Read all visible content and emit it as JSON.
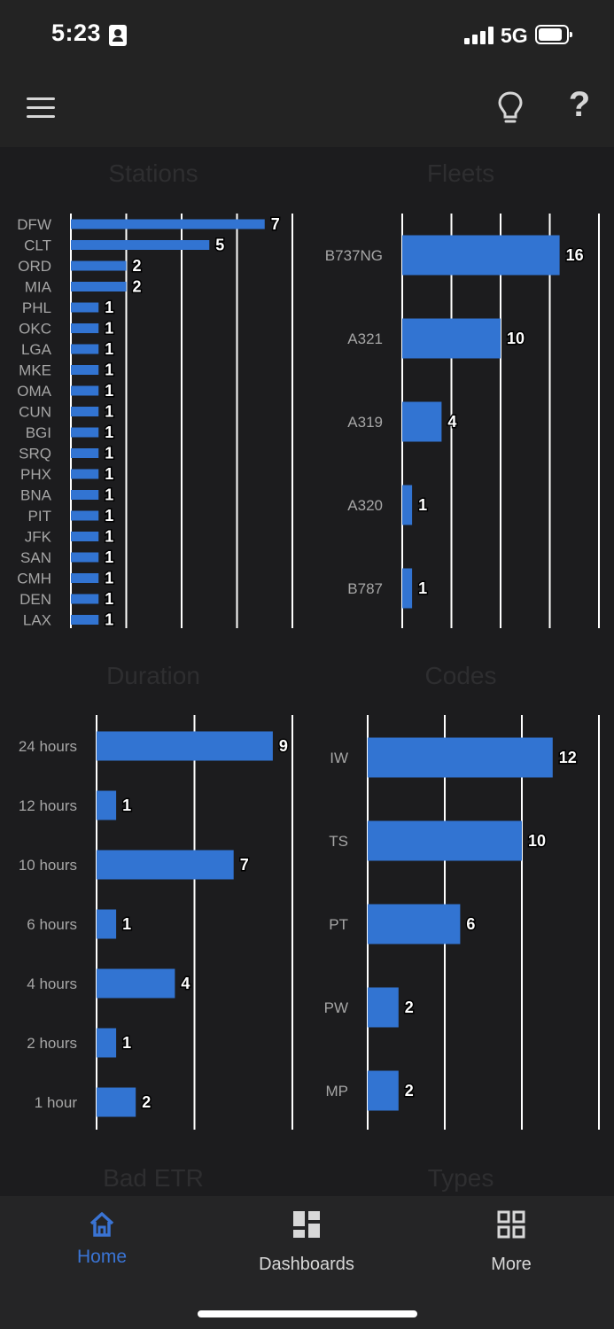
{
  "status_bar": {
    "time": "5:23",
    "network": "5G"
  },
  "colors": {
    "bar": "#3274d2",
    "grid": "#ffffff",
    "label": "#a6a6a6",
    "nav_active": "#3a74d4",
    "nav_inactive": "#d8d8d8"
  },
  "chart_data": [
    {
      "id": "stations",
      "type": "bar",
      "orientation": "horizontal",
      "title": "Stations",
      "categories": [
        "DFW",
        "CLT",
        "ORD",
        "MIA",
        "PHL",
        "OKC",
        "LGA",
        "MKE",
        "OMA",
        "CUN",
        "BGI",
        "SRQ",
        "PHX",
        "BNA",
        "PIT",
        "JFK",
        "SAN",
        "CMH",
        "DEN",
        "LAX"
      ],
      "values": [
        7,
        5,
        2,
        2,
        1,
        1,
        1,
        1,
        1,
        1,
        1,
        1,
        1,
        1,
        1,
        1,
        1,
        1,
        1,
        1
      ],
      "xlim": [
        0,
        8
      ],
      "grid_step": 2
    },
    {
      "id": "fleets",
      "type": "bar",
      "orientation": "horizontal",
      "title": "Fleets",
      "categories": [
        "B737NG",
        "A321",
        "A319",
        "A320",
        "B787"
      ],
      "values": [
        16,
        10,
        4,
        1,
        1
      ],
      "xlim": [
        0,
        20
      ],
      "grid_step": 5
    },
    {
      "id": "duration",
      "type": "bar",
      "orientation": "horizontal",
      "title": "Duration",
      "categories": [
        "24 hours",
        "12 hours",
        "10 hours",
        "6 hours",
        "4 hours",
        "2 hours",
        "1 hour"
      ],
      "values": [
        9,
        1,
        7,
        1,
        4,
        1,
        2
      ],
      "xlim": [
        0,
        10
      ],
      "grid_step": 5
    },
    {
      "id": "codes",
      "type": "bar",
      "orientation": "horizontal",
      "title": "Codes",
      "categories": [
        "IW",
        "TS",
        "PT",
        "PW",
        "MP"
      ],
      "values": [
        12,
        10,
        6,
        2,
        2
      ],
      "xlim": [
        0,
        15
      ],
      "grid_step": 5
    }
  ],
  "sections": {
    "bad_etr_title": "Bad ETR",
    "types_title": "Types"
  },
  "nav": [
    {
      "label": "Home",
      "icon": "home-icon",
      "active": true
    },
    {
      "label": "Dashboards",
      "icon": "dashboard-icon",
      "active": false
    },
    {
      "label": "More",
      "icon": "apps-icon",
      "active": false
    }
  ]
}
